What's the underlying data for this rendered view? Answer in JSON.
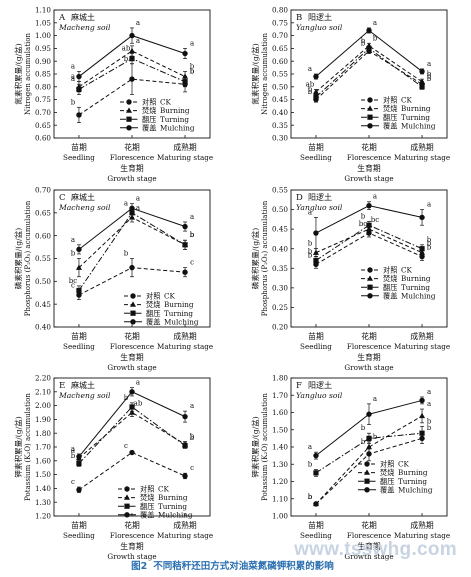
{
  "caption": {
    "label": "图2",
    "text": "不同秸秆还田方式对油菜氮磷钾积累的影响"
  },
  "watermark": "www.tsswhg.com",
  "chart_data": [
    {
      "panel": "A",
      "type": "line",
      "soil_cn": "麻城土",
      "soil_en": "Macheng soil",
      "ylabel_cn": "氮素积累量/(g/盆)",
      "ylabel_en": "Nitrogen accumulation",
      "xlabel_cn": "生育期",
      "xlabel_en": "Growth stage",
      "categories_cn": [
        "苗期",
        "花期",
        "成熟期"
      ],
      "categories_en": [
        "Seedling",
        "Florescence",
        "Maturing stage"
      ],
      "ylim": [
        0.6,
        1.1
      ],
      "yticks": [
        "0.60",
        "0.65",
        "0.70",
        "0.75",
        "0.80",
        "0.85",
        "0.90",
        "0.95",
        "1.00",
        "1.05",
        "1.10"
      ],
      "legend": [
        {
          "series": 0,
          "cn": "对照",
          "en": "CK"
        },
        {
          "series": 1,
          "cn": "焚烧",
          "en": "Burning"
        },
        {
          "series": 2,
          "cn": "翻压",
          "en": "Turning"
        },
        {
          "series": 3,
          "cn": "覆盖",
          "en": "Mulching"
        }
      ],
      "series": [
        {
          "values": [
            0.69,
            0.83,
            0.81
          ],
          "err": [
            0.03,
            0.06,
            0.03
          ],
          "labels": [
            "b",
            "b",
            "b"
          ],
          "style": "dash",
          "marker": "circle"
        },
        {
          "values": [
            0.8,
            0.94,
            0.84
          ],
          "err": [
            0.02,
            0.02,
            0.02
          ],
          "labels": [
            "a",
            "a",
            "b"
          ],
          "style": "dash",
          "marker": "triangle"
        },
        {
          "values": [
            0.79,
            0.91,
            0.82
          ],
          "err": [
            0.02,
            0.02,
            0.02
          ],
          "labels": [
            "a",
            "ab",
            "b"
          ],
          "style": "dashdot",
          "marker": "square"
        },
        {
          "values": [
            0.84,
            1.0,
            0.93
          ],
          "err": [
            0.02,
            0.03,
            0.02
          ],
          "labels": [
            "a",
            "a",
            "a"
          ],
          "style": "solid",
          "marker": "circle"
        }
      ]
    },
    {
      "panel": "B",
      "type": "line",
      "soil_cn": "阳逻土",
      "soil_en": "Yangluo soil",
      "ylabel_cn": "氮素积累量/(g/盆)",
      "ylabel_en": "Nitrogen accumulation",
      "xlabel_cn": "生育期",
      "xlabel_en": "Growth stage",
      "categories_cn": [
        "苗期",
        "花期",
        "成熟期"
      ],
      "categories_en": [
        "Seedling",
        "Florescence",
        "Maturing stage"
      ],
      "ylim": [
        0.3,
        0.8
      ],
      "yticks": [
        "0.30",
        "0.35",
        "0.40",
        "0.45",
        "0.50",
        "0.55",
        "0.60",
        "0.65",
        "0.70",
        "0.75",
        "0.80"
      ],
      "legend": [
        {
          "series": 0,
          "cn": "对照",
          "en": "CK"
        },
        {
          "series": 1,
          "cn": "焚烧",
          "en": "Burning"
        },
        {
          "series": 2,
          "cn": "翻压",
          "en": "Turning"
        },
        {
          "series": 3,
          "cn": "覆盖",
          "en": "Mulching"
        }
      ],
      "series": [
        {
          "values": [
            0.45,
            0.64,
            0.51
          ],
          "err": [
            0.01,
            0.01,
            0.01
          ],
          "labels": [
            "b",
            "b",
            "b"
          ],
          "style": "dash",
          "marker": "circle"
        },
        {
          "values": [
            0.48,
            0.66,
            0.52
          ],
          "err": [
            0.01,
            0.01,
            0.01
          ],
          "labels": [
            "ab",
            "b",
            "b"
          ],
          "style": "dash",
          "marker": "triangle"
        },
        {
          "values": [
            0.46,
            0.65,
            0.5
          ],
          "err": [
            0.01,
            0.01,
            0.01
          ],
          "labels": [
            "b",
            "b",
            "b"
          ],
          "style": "dashdot",
          "marker": "square"
        },
        {
          "values": [
            0.54,
            0.72,
            0.56
          ],
          "err": [
            0.01,
            0.01,
            0.01
          ],
          "labels": [
            "a",
            "a",
            "a"
          ],
          "style": "solid",
          "marker": "circle"
        }
      ]
    },
    {
      "panel": "C",
      "type": "line",
      "soil_cn": "麻城土",
      "soil_en": "Macheng soil",
      "ylabel_cn": "磷素积累量/(g/盆)",
      "ylabel_en": "Phosphorus (P₂O₅) accumulation",
      "xlabel_cn": "生育期",
      "xlabel_en": "Growth stage",
      "categories_cn": [
        "苗期",
        "花期",
        "成熟期"
      ],
      "categories_en": [
        "Seedling",
        "Florescence",
        "Maturing stage"
      ],
      "ylim": [
        0.4,
        0.7
      ],
      "yticks": [
        "0.40",
        "0.45",
        "0.50",
        "0.55",
        "0.60",
        "0.65",
        "0.70"
      ],
      "legend": [
        {
          "series": 0,
          "cn": "对照",
          "en": "CK"
        },
        {
          "series": 1,
          "cn": "焚烧",
          "en": "Burning"
        },
        {
          "series": 2,
          "cn": "翻压",
          "en": "Turning"
        },
        {
          "series": 3,
          "cn": "覆盖",
          "en": "Mulching"
        }
      ],
      "series": [
        {
          "values": [
            0.47,
            0.53,
            0.52
          ],
          "err": [
            0.01,
            0.02,
            0.01
          ],
          "labels": [
            "c",
            "b",
            "c"
          ],
          "style": "dash",
          "marker": "circle"
        },
        {
          "values": [
            0.53,
            0.64,
            0.58
          ],
          "err": [
            0.02,
            0.01,
            0.01
          ],
          "labels": [
            "b",
            "a",
            "b"
          ],
          "style": "dash",
          "marker": "triangle"
        },
        {
          "values": [
            0.48,
            0.65,
            0.58
          ],
          "err": [
            0.01,
            0.01,
            0.01
          ],
          "labels": [
            "bc",
            "a",
            "b"
          ],
          "style": "dashdot",
          "marker": "square"
        },
        {
          "values": [
            0.57,
            0.66,
            0.62
          ],
          "err": [
            0.01,
            0.01,
            0.01
          ],
          "labels": [
            "a",
            "a",
            "a"
          ],
          "style": "solid",
          "marker": "circle"
        }
      ]
    },
    {
      "panel": "D",
      "type": "line",
      "soil_cn": "阳逻土",
      "soil_en": "Yangluo soil",
      "ylabel_cn": "磷素积累量/(g/盆)",
      "ylabel_en": "Phosphorus (P₂O₅) accumulation",
      "xlabel_cn": "生育期",
      "xlabel_en": "Growth stage",
      "categories_cn": [
        "苗期",
        "花期",
        "成熟期"
      ],
      "categories_en": [
        "Seedling",
        "Florescence",
        "Maturing stage"
      ],
      "ylim": [
        0.2,
        0.55
      ],
      "yticks": [
        "0.20",
        "0.25",
        "0.30",
        "0.35",
        "0.40",
        "0.45",
        "0.50",
        "0.55"
      ],
      "legend": [
        {
          "series": 0,
          "cn": "对照",
          "en": "CK"
        },
        {
          "series": 1,
          "cn": "焚烧",
          "en": "Burning"
        },
        {
          "series": 2,
          "cn": "翻压",
          "en": "Turning"
        },
        {
          "series": 3,
          "cn": "覆盖",
          "en": "Mulching"
        }
      ],
      "series": [
        {
          "values": [
            0.36,
            0.44,
            0.38
          ],
          "err": [
            0.01,
            0.01,
            0.01
          ],
          "labels": [
            "b",
            "bc",
            "b"
          ],
          "style": "dash",
          "marker": "circle"
        },
        {
          "values": [
            0.39,
            0.45,
            0.39
          ],
          "err": [
            0.01,
            0.01,
            0.01
          ],
          "labels": [
            "b",
            "bc",
            "b"
          ],
          "style": "dash",
          "marker": "triangle"
        },
        {
          "values": [
            0.37,
            0.46,
            0.4
          ],
          "err": [
            0.01,
            0.01,
            0.01
          ],
          "labels": [
            "b",
            "b",
            "b"
          ],
          "style": "dashdot",
          "marker": "square"
        },
        {
          "values": [
            0.44,
            0.51,
            0.48
          ],
          "err": [
            0.04,
            0.01,
            0.02
          ],
          "labels": [
            "a",
            "a",
            "a"
          ],
          "style": "solid",
          "marker": "circle"
        }
      ]
    },
    {
      "panel": "E",
      "type": "line",
      "soil_cn": "麻城土",
      "soil_en": "Macheng soil",
      "ylabel_cn": "钾素积累量/(g/盆)",
      "ylabel_en": "Potassium (K₂O) accumulation",
      "xlabel_cn": "生育期",
      "xlabel_en": "Growth stage",
      "categories_cn": [
        "苗期",
        "花期",
        "成熟期"
      ],
      "categories_en": [
        "Seedling",
        "Florescence",
        "Maturing stage"
      ],
      "ylim": [
        1.2,
        2.2
      ],
      "yticks": [
        "1.20",
        "1.30",
        "1.40",
        "1.50",
        "1.60",
        "1.70",
        "1.80",
        "1.90",
        "2.00",
        "2.10",
        "2.20"
      ],
      "legend": [
        {
          "series": 0,
          "cn": "对照",
          "en": "CK"
        },
        {
          "series": 1,
          "cn": "焚烧",
          "en": "Burning"
        },
        {
          "series": 2,
          "cn": "翻压",
          "en": "Turning"
        },
        {
          "series": 3,
          "cn": "覆盖",
          "en": "Mulching"
        }
      ],
      "series": [
        {
          "values": [
            1.39,
            1.66,
            1.49
          ],
          "err": [
            0.02,
            0.01,
            0.02
          ],
          "labels": [
            "c",
            "c",
            "c"
          ],
          "style": "dash",
          "marker": "circle"
        },
        {
          "values": [
            1.62,
            1.95,
            1.72
          ],
          "err": [
            0.02,
            0.03,
            0.02
          ],
          "labels": [
            "a",
            "ab",
            "b"
          ],
          "style": "dash",
          "marker": "triangle"
        },
        {
          "values": [
            1.58,
            1.99,
            1.71
          ],
          "err": [
            0.02,
            0.03,
            0.02
          ],
          "labels": [
            "b",
            "b",
            "b"
          ],
          "style": "dashdot",
          "marker": "square"
        },
        {
          "values": [
            1.63,
            2.1,
            1.92
          ],
          "err": [
            0.02,
            0.03,
            0.04
          ],
          "labels": [
            "a",
            "a",
            "a"
          ],
          "style": "solid",
          "marker": "circle"
        }
      ]
    },
    {
      "panel": "F",
      "type": "line",
      "soil_cn": "阳逻土",
      "soil_en": "Yangluo soil",
      "ylabel_cn": "钾素积累量/(g/盆)",
      "ylabel_en": "Potassium (K₂O) accumulation",
      "xlabel_cn": "生育期",
      "xlabel_en": "Growth stage",
      "categories_cn": [
        "苗期",
        "花期",
        "成熟期"
      ],
      "categories_en": [
        "Seedling",
        "Florescence",
        "Maturing stage"
      ],
      "ylim": [
        1.0,
        1.8
      ],
      "yticks": [
        "1.00",
        "1.10",
        "1.20",
        "1.30",
        "1.40",
        "1.50",
        "1.60",
        "1.70",
        "1.80"
      ],
      "legend": [
        {
          "series": 0,
          "cn": "对照",
          "en": "CK"
        },
        {
          "series": 1,
          "cn": "焚烧",
          "en": "Burning"
        },
        {
          "series": 2,
          "cn": "翻压",
          "en": "Turning"
        },
        {
          "series": 3,
          "cn": "覆盖",
          "en": "Mulching"
        }
      ],
      "series": [
        {
          "values": [
            1.07,
            1.36,
            1.45
          ],
          "err": [
            0.01,
            0.04,
            0.03
          ],
          "labels": [
            "b",
            "b",
            "b"
          ],
          "style": "dash",
          "marker": "circle"
        },
        {
          "values": [
            1.07,
            1.4,
            1.58
          ],
          "err": [
            0.01,
            0.03,
            0.04
          ],
          "labels": [
            "b",
            "b",
            "a"
          ],
          "style": "dash",
          "marker": "triangle"
        },
        {
          "values": [
            1.25,
            1.45,
            1.48
          ],
          "err": [
            0.02,
            0.03,
            0.04
          ],
          "labels": [
            "b",
            "b",
            "b"
          ],
          "style": "dashdot",
          "marker": "square"
        },
        {
          "values": [
            1.35,
            1.59,
            1.67
          ],
          "err": [
            0.02,
            0.06,
            0.02
          ],
          "labels": [
            "a",
            "a",
            "a"
          ],
          "style": "solid",
          "marker": "circle"
        }
      ]
    }
  ]
}
